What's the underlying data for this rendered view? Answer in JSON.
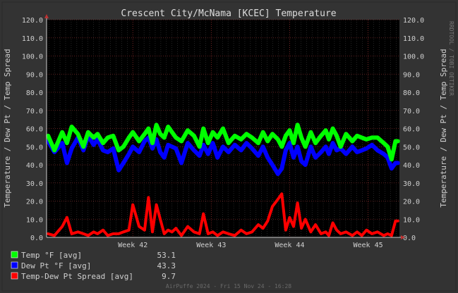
{
  "chart_data": {
    "type": "line",
    "title": "Crescent City/McNama [KCEC] Temperature",
    "ylabel": "Temperature / Dew Pt / Temp Spread",
    "ylim": [
      0,
      120
    ],
    "yticks": [
      "0.0",
      "10.0",
      "20.0",
      "30.0",
      "40.0",
      "50.0",
      "60.0",
      "70.0",
      "80.0",
      "90.0",
      "100.0",
      "110.0",
      "120.0"
    ],
    "xlim": [
      40.9,
      45.4
    ],
    "xtick_values": [
      42,
      43,
      44,
      45
    ],
    "xticks": [
      "Week 42",
      "Week 43",
      "Week 44",
      "Week 45"
    ],
    "grid": true,
    "series": [
      {
        "name": "Temp °F [avg]",
        "color": "#00ff00",
        "current": "53.1",
        "x": [
          40.92,
          41.0,
          41.1,
          41.16,
          41.22,
          41.3,
          41.37,
          41.43,
          41.5,
          41.55,
          41.62,
          41.68,
          41.75,
          41.82,
          41.88,
          41.95,
          42.0,
          42.08,
          42.15,
          42.2,
          42.25,
          42.3,
          42.35,
          42.4,
          42.45,
          42.5,
          42.55,
          42.62,
          42.7,
          42.78,
          42.85,
          42.9,
          42.96,
          43.02,
          43.08,
          43.15,
          43.22,
          43.3,
          43.38,
          43.45,
          43.52,
          43.6,
          43.66,
          43.72,
          43.78,
          43.85,
          43.9,
          43.95,
          44.0,
          44.05,
          44.1,
          44.15,
          44.2,
          44.27,
          44.33,
          44.4,
          44.46,
          44.5,
          44.55,
          44.6,
          44.65,
          44.72,
          44.8,
          44.86,
          44.92,
          44.98,
          45.05,
          45.12,
          45.2,
          45.25,
          45.3,
          45.35,
          45.38
        ],
        "values": [
          56,
          48,
          58,
          52,
          61,
          57,
          50,
          58,
          55,
          57,
          52,
          55,
          56,
          48,
          50,
          55,
          58,
          53,
          57,
          60,
          52,
          62,
          57,
          55,
          61,
          58,
          55,
          53,
          59,
          56,
          50,
          60,
          52,
          58,
          55,
          60,
          52,
          56,
          54,
          57,
          55,
          52,
          58,
          53,
          57,
          54,
          50,
          56,
          59,
          52,
          62,
          55,
          50,
          58,
          52,
          56,
          59,
          54,
          60,
          56,
          50,
          57,
          53,
          56,
          55,
          54,
          55,
          55,
          52,
          50,
          43,
          53,
          53
        ]
      },
      {
        "name": "Dew Pt °F [avg]",
        "color": "#0000ff",
        "current": "43.3",
        "x": [
          40.92,
          41.0,
          41.1,
          41.16,
          41.22,
          41.3,
          41.37,
          41.43,
          41.5,
          41.55,
          41.62,
          41.68,
          41.75,
          41.82,
          41.88,
          41.95,
          42.0,
          42.08,
          42.15,
          42.2,
          42.25,
          42.3,
          42.35,
          42.4,
          42.45,
          42.5,
          42.55,
          42.62,
          42.7,
          42.78,
          42.85,
          42.9,
          42.96,
          43.02,
          43.08,
          43.15,
          43.22,
          43.3,
          43.38,
          43.45,
          43.52,
          43.6,
          43.66,
          43.72,
          43.78,
          43.85,
          43.9,
          43.95,
          44.0,
          44.05,
          44.1,
          44.15,
          44.2,
          44.27,
          44.33,
          44.4,
          44.46,
          44.5,
          44.55,
          44.6,
          44.65,
          44.72,
          44.8,
          44.86,
          44.92,
          44.98,
          45.05,
          45.12,
          45.2,
          45.25,
          45.3,
          45.35,
          45.38
        ],
        "values": [
          53,
          47,
          52,
          41,
          49,
          55,
          48,
          56,
          51,
          54,
          48,
          47,
          49,
          37,
          41,
          46,
          50,
          47,
          53,
          55,
          49,
          54,
          47,
          44,
          51,
          50,
          49,
          41,
          52,
          48,
          45,
          51,
          46,
          52,
          44,
          50,
          47,
          51,
          48,
          52,
          49,
          45,
          50,
          44,
          40,
          35,
          38,
          48,
          52,
          44,
          50,
          42,
          40,
          50,
          44,
          47,
          50,
          46,
          52,
          48,
          49,
          46,
          50,
          47,
          48,
          49,
          51,
          48,
          46,
          44,
          38,
          41,
          41
        ]
      },
      {
        "name": "Temp-Dew Pt Spread [avg]",
        "color": "#ff0000",
        "current": "9.7",
        "x": [
          40.92,
          41.0,
          41.1,
          41.16,
          41.22,
          41.3,
          41.37,
          41.43,
          41.5,
          41.55,
          41.62,
          41.68,
          41.75,
          41.82,
          41.88,
          41.95,
          42.0,
          42.08,
          42.15,
          42.2,
          42.25,
          42.3,
          42.35,
          42.4,
          42.45,
          42.5,
          42.55,
          42.62,
          42.7,
          42.78,
          42.85,
          42.9,
          42.96,
          43.02,
          43.08,
          43.15,
          43.22,
          43.3,
          43.38,
          43.45,
          43.52,
          43.6,
          43.66,
          43.72,
          43.78,
          43.85,
          43.9,
          43.95,
          44.0,
          44.05,
          44.1,
          44.15,
          44.2,
          44.27,
          44.33,
          44.4,
          44.46,
          44.5,
          44.55,
          44.6,
          44.65,
          44.72,
          44.8,
          44.86,
          44.92,
          44.98,
          45.05,
          45.12,
          45.2,
          45.25,
          45.3,
          45.35,
          45.38
        ],
        "values": [
          2,
          1,
          6,
          11,
          2,
          3,
          2,
          1,
          3,
          2,
          4,
          1,
          2,
          2,
          3,
          4,
          18,
          6,
          4,
          22,
          3,
          18,
          10,
          2,
          4,
          3,
          5,
          1,
          6,
          3,
          2,
          13,
          2,
          3,
          1,
          3,
          2,
          1,
          4,
          2,
          3,
          7,
          5,
          9,
          17,
          21,
          24,
          4,
          11,
          6,
          19,
          5,
          10,
          3,
          7,
          2,
          3,
          1,
          8,
          4,
          2,
          3,
          1,
          3,
          1,
          4,
          2,
          3,
          1,
          2,
          1,
          9,
          9
        ]
      }
    ]
  },
  "footer": "AirPuffe 2024 - Fri 15 Nov 24 - 16:28",
  "vendor": "RRDTOOL / TOBI OETIKER"
}
